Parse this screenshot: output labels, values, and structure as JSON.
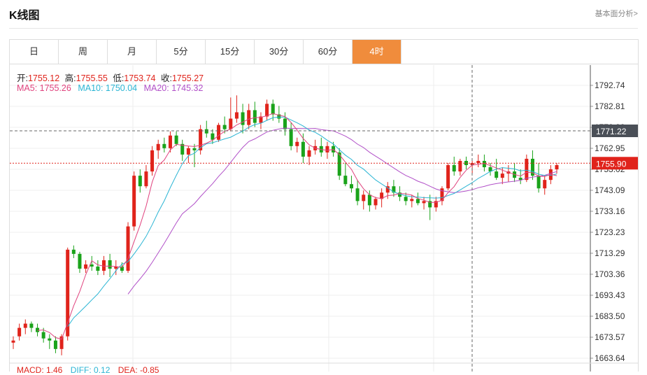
{
  "header": {
    "title": "K线图",
    "link": "基本面分析>"
  },
  "tabs": [
    {
      "label": "日",
      "active": false
    },
    {
      "label": "周",
      "active": false
    },
    {
      "label": "月",
      "active": false
    },
    {
      "label": "5分",
      "active": false
    },
    {
      "label": "15分",
      "active": false
    },
    {
      "label": "30分",
      "active": false
    },
    {
      "label": "60分",
      "active": false
    },
    {
      "label": "4时",
      "active": true
    }
  ],
  "ohlc": {
    "open_label": "开:",
    "open": "1755.12",
    "high_label": "高:",
    "high": "1755.55",
    "low_label": "低:",
    "low": "1753.74",
    "close_label": "收:",
    "close": "1755.27"
  },
  "ma": {
    "ma5": "MA5: 1755.26",
    "ma10": "MA10: 1750.04",
    "ma20": "MA20: 1745.32",
    "ma5_color": "#e0437e",
    "ma10_color": "#2bb5d4",
    "ma20_color": "#b150c8"
  },
  "macd": {
    "macd": "MACD: 1.46",
    "diff": "DIFF: 0.12",
    "dea": "DEA: -0.85"
  },
  "colors": {
    "up": "#e0231b",
    "down": "#1aa31a",
    "accent": "#f08c3c"
  },
  "chart_data": {
    "type": "candlestick",
    "y_ticks": [
      "1792.74",
      "1782.81",
      "1772.88",
      "1762.95",
      "1753.02",
      "1743.09",
      "1733.16",
      "1723.23",
      "1713.29",
      "1703.36",
      "1693.43",
      "1683.50",
      "1673.57",
      "1663.64"
    ],
    "ylim": [
      1663.64,
      1792.74
    ],
    "crosshair_label": "1771.22",
    "current_price_label": "1755.90",
    "candles": [
      [
        1671,
        1674,
        1668,
        1672
      ],
      [
        1674,
        1680,
        1672,
        1678
      ],
      [
        1678,
        1682,
        1675,
        1680
      ],
      [
        1680,
        1681,
        1676,
        1678
      ],
      [
        1678,
        1680,
        1674,
        1676
      ],
      [
        1676,
        1678,
        1671,
        1673
      ],
      [
        1673,
        1675,
        1668,
        1672
      ],
      [
        1672,
        1674,
        1666,
        1668
      ],
      [
        1668,
        1675,
        1665,
        1674
      ],
      [
        1674,
        1716,
        1672,
        1715
      ],
      [
        1715,
        1717,
        1711,
        1713
      ],
      [
        1713,
        1714,
        1704,
        1706
      ],
      [
        1706,
        1710,
        1704,
        1708
      ],
      [
        1708,
        1712,
        1705,
        1707
      ],
      [
        1707,
        1710,
        1703,
        1705
      ],
      [
        1705,
        1712,
        1703,
        1710
      ],
      [
        1710,
        1713,
        1702,
        1706
      ],
      [
        1706,
        1710,
        1703,
        1707
      ],
      [
        1707,
        1709,
        1704,
        1705
      ],
      [
        1705,
        1728,
        1704,
        1726
      ],
      [
        1726,
        1752,
        1724,
        1750
      ],
      [
        1750,
        1753,
        1742,
        1745
      ],
      [
        1745,
        1755,
        1744,
        1752
      ],
      [
        1752,
        1764,
        1750,
        1762
      ],
      [
        1762,
        1767,
        1758,
        1765
      ],
      [
        1765,
        1768,
        1761,
        1763
      ],
      [
        1763,
        1771,
        1761,
        1769
      ],
      [
        1769,
        1771,
        1764,
        1765
      ],
      [
        1765,
        1767,
        1757,
        1760
      ],
      [
        1760,
        1764,
        1756,
        1763
      ],
      [
        1763,
        1765,
        1754,
        1762
      ],
      [
        1762,
        1774,
        1760,
        1772
      ],
      [
        1772,
        1776,
        1768,
        1770
      ],
      [
        1770,
        1772,
        1765,
        1767
      ],
      [
        1767,
        1775,
        1766,
        1774
      ],
      [
        1774,
        1778,
        1770,
        1772
      ],
      [
        1772,
        1787,
        1771,
        1777
      ],
      [
        1777,
        1788,
        1775,
        1780
      ],
      [
        1780,
        1784,
        1770,
        1774
      ],
      [
        1774,
        1784,
        1772,
        1781
      ],
      [
        1781,
        1785,
        1773,
        1775
      ],
      [
        1775,
        1780,
        1772,
        1778
      ],
      [
        1778,
        1786,
        1776,
        1784
      ],
      [
        1784,
        1786,
        1776,
        1779
      ],
      [
        1779,
        1783,
        1775,
        1777
      ],
      [
        1777,
        1780,
        1769,
        1772
      ],
      [
        1772,
        1775,
        1762,
        1764
      ],
      [
        1764,
        1768,
        1761,
        1766
      ],
      [
        1766,
        1770,
        1756,
        1759
      ],
      [
        1759,
        1764,
        1755,
        1762
      ],
      [
        1762,
        1767,
        1760,
        1764
      ],
      [
        1764,
        1768,
        1759,
        1761
      ],
      [
        1761,
        1766,
        1758,
        1764
      ],
      [
        1764,
        1766,
        1759,
        1761
      ],
      [
        1761,
        1763,
        1748,
        1750
      ],
      [
        1750,
        1756,
        1745,
        1746
      ],
      [
        1746,
        1750,
        1742,
        1744
      ],
      [
        1744,
        1748,
        1736,
        1738
      ],
      [
        1738,
        1743,
        1734,
        1741
      ],
      [
        1741,
        1743,
        1733,
        1736
      ],
      [
        1736,
        1740,
        1734,
        1739
      ],
      [
        1739,
        1744,
        1735,
        1742
      ],
      [
        1742,
        1747,
        1739,
        1745
      ],
      [
        1745,
        1748,
        1740,
        1742
      ],
      [
        1742,
        1745,
        1738,
        1740
      ],
      [
        1740,
        1742,
        1736,
        1738
      ],
      [
        1738,
        1741,
        1735,
        1739
      ],
      [
        1739,
        1742,
        1736,
        1737
      ],
      [
        1737,
        1740,
        1734,
        1738
      ],
      [
        1738,
        1741,
        1729,
        1735
      ],
      [
        1735,
        1740,
        1733,
        1738
      ],
      [
        1738,
        1745,
        1736,
        1744
      ],
      [
        1744,
        1756,
        1743,
        1755
      ],
      [
        1755,
        1759,
        1750,
        1752
      ],
      [
        1752,
        1758,
        1750,
        1757
      ],
      [
        1757,
        1759,
        1753,
        1755
      ],
      [
        1755,
        1757,
        1751,
        1756
      ],
      [
        1756,
        1760,
        1754,
        1757
      ],
      [
        1757,
        1760,
        1752,
        1754
      ],
      [
        1754,
        1756,
        1750,
        1752
      ],
      [
        1752,
        1758,
        1748,
        1749
      ],
      [
        1749,
        1754,
        1746,
        1751
      ],
      [
        1751,
        1755,
        1747,
        1752
      ],
      [
        1752,
        1756,
        1747,
        1749
      ],
      [
        1749,
        1753,
        1746,
        1748
      ],
      [
        1748,
        1760,
        1747,
        1758
      ],
      [
        1758,
        1762,
        1748,
        1750
      ],
      [
        1750,
        1756,
        1742,
        1744
      ],
      [
        1744,
        1750,
        1741,
        1748
      ],
      [
        1748,
        1755,
        1746,
        1753
      ],
      [
        1753,
        1756,
        1751,
        1755
      ]
    ]
  }
}
